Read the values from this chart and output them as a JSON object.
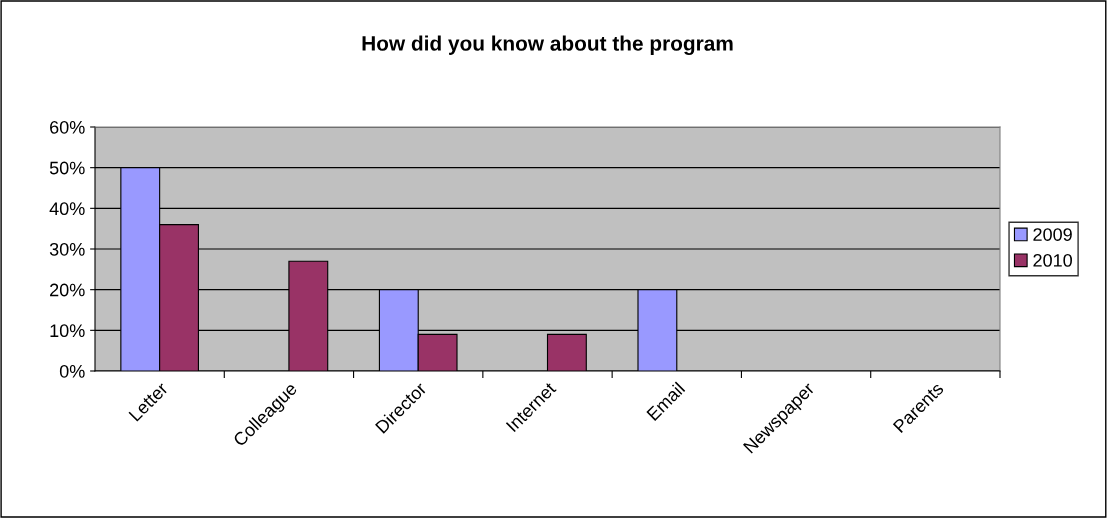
{
  "chart_data": {
    "type": "bar",
    "title": "How did you know about the program",
    "categories": [
      "Letter",
      "Colleague",
      "Director",
      "Internet",
      "Email",
      "Newspaper",
      "Parents"
    ],
    "series": [
      {
        "name": "2009",
        "color": "#9999ff",
        "values": [
          50,
          null,
          20,
          null,
          20,
          null,
          null
        ]
      },
      {
        "name": "2010",
        "color": "#993366",
        "values": [
          36,
          27,
          9,
          9,
          null,
          null,
          null
        ]
      }
    ],
    "ylim": [
      0,
      60
    ],
    "yticks": [
      {
        "value": 0,
        "label": "0%"
      },
      {
        "value": 10,
        "label": "10%"
      },
      {
        "value": 20,
        "label": "20%"
      },
      {
        "value": 30,
        "label": "30%"
      },
      {
        "value": 40,
        "label": "40%"
      },
      {
        "value": 50,
        "label": "50%"
      },
      {
        "value": 60,
        "label": "60%"
      }
    ],
    "grid": "y",
    "legend": "right"
  }
}
